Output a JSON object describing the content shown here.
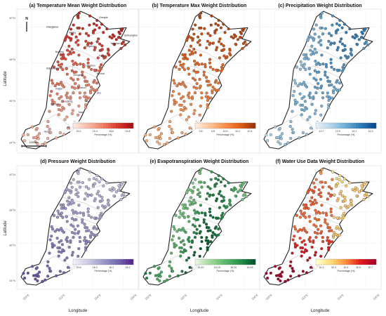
{
  "axes": {
    "ylabel": "Latitude",
    "xlabel": "Longitude",
    "lat_ticks": [
      "40°N",
      "38°N",
      "36°N",
      "34°N"
    ],
    "lon_ticks": [
      "110°E",
      "112°E",
      "114°E",
      "116°E"
    ]
  },
  "colorbar_label": "Percentage (%)",
  "north_arrow": "N",
  "scalebar_label": "100 km",
  "cities": [
    "Zhangjiakou",
    "Chengde",
    "Qinhuangdao",
    "Tangshan",
    "Beijing",
    "Langfang",
    "Tianjin",
    "Baoding",
    "Cangzhou",
    "Shijiazhuang",
    "Hengshui",
    "Xingtai",
    "Handan",
    "Dezhou",
    "Binzhou",
    "Jinan",
    "Liaocheng",
    "Zibo",
    "Taian",
    "Heze",
    "Jining"
  ],
  "panels": [
    {
      "title": "(a) Temperature Mean Weight Distribution",
      "ticks": [
        "15.2",
        "15.4",
        "15.6",
        "15.8"
      ],
      "cmap": [
        "#fbe8e1",
        "#f6b9a3",
        "#ee7f66",
        "#d93a2b",
        "#a50f15"
      ]
    },
    {
      "title": "(b) Temperature Max Weight Distribution",
      "ticks": [
        "9.6",
        "9.8",
        "10.0",
        "10.2",
        "10.4"
      ],
      "cmap": [
        "#fdeadb",
        "#fcc294",
        "#f98e4a",
        "#e45f17",
        "#9a3306"
      ]
    },
    {
      "title": "(c) Precipitation Weight Distribution",
      "ticks": [
        "13.7",
        "13.9",
        "14.1",
        "14.3"
      ],
      "cmap": [
        "#e5f0f9",
        "#b0d3ea",
        "#6badd6",
        "#2d7cb8",
        "#0a4a8c"
      ]
    },
    {
      "title": "(d) Pressure Weight Distribution",
      "ticks": [
        "15.8",
        "16.0",
        "16.1",
        "16.2"
      ],
      "cmap": [
        "#f1eef7",
        "#cbc9e2",
        "#9e9ac8",
        "#756bb1",
        "#54278f"
      ]
    },
    {
      "title": "(e) Evapotranspiration Weight Distribution",
      "ticks": [
        "16.10",
        "16.15",
        "16.20",
        "16.25"
      ],
      "cmap": [
        "#e5f5e0",
        "#a1d99b",
        "#5ab86a",
        "#2a944d",
        "#00582a"
      ]
    },
    {
      "title": "(f) Water Use Data Weight Distribution",
      "ticks": [
        "30.1",
        "30.3",
        "30.4",
        "30.5",
        "30.7"
      ],
      "cmap": [
        "#ffffcc",
        "#fed976",
        "#fd8d3c",
        "#e31a1c",
        "#a50026"
      ]
    }
  ]
}
